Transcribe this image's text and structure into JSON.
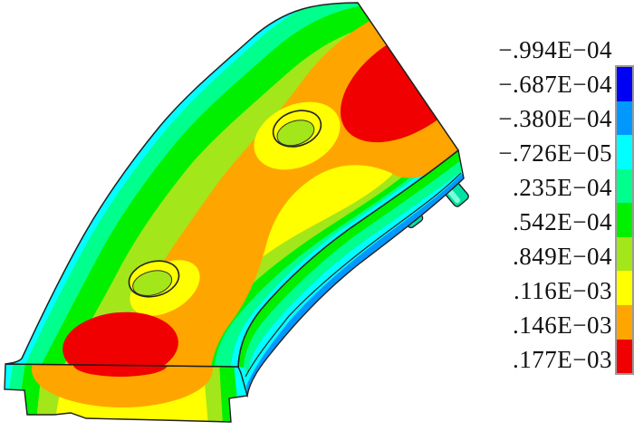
{
  "app": {
    "background": "#ffffff",
    "description": "FEA contour result plot of a curved tunnel lining segment with color legend"
  },
  "palette": {
    "colors": {
      "blue": "#0000f5",
      "skyblue": "#0098ff",
      "cyan": "#00ffff",
      "springgreen": "#00ff8c",
      "green": "#00f000",
      "yellowgreen": "#a3e619",
      "yellow": "#ffff00",
      "orange": "#ffa500",
      "red": "#f00000",
      "stud": "#00e2a4",
      "studlight": "#7dffd8",
      "outline": "#1f1f1f",
      "legend_border": "#9a9a9a",
      "text": "#111111"
    }
  },
  "legend": {
    "position": "right",
    "labels": [
      "−.994E−04",
      "−.687E−04",
      "−.380E−04",
      "−.726E−05",
      ".235E−04",
      ".542E−04",
      ".849E−04",
      ".116E−03",
      ".146E−03",
      ".177E−03"
    ],
    "band_order_top_to_bottom": [
      "blue",
      "skyblue",
      "cyan",
      "springgreen",
      "green",
      "yellowgreen",
      "yellow",
      "orange",
      "red"
    ]
  },
  "chart_data": {
    "type": "heatmap",
    "title": "",
    "legend_position": "right",
    "contour_levels": [
      -9.94e-05,
      -6.87e-05,
      -3.8e-05,
      -7.26e-06,
      2.35e-05,
      5.42e-05,
      8.49e-05,
      0.000116,
      0.000146,
      0.000177
    ],
    "level_labels": [
      "−.994E−04",
      "−.687E−04",
      "−.380E−04",
      "−.726E−05",
      ".235E−04",
      ".542E−04",
      ".849E−04",
      ".116E−03",
      ".146E−03",
      ".177E−03"
    ],
    "band_colors": [
      "#0000f5",
      "#0098ff",
      "#00ffff",
      "#00ff8c",
      "#00f000",
      "#a3e619",
      "#ffff00",
      "#ffa500",
      "#f00000"
    ],
    "min": -9.94e-05,
    "max": 0.000177,
    "notes": "Curved segment: red maxima (≈.177E−03) at the two joint faces, orange ridge along mid-surface, green-to-cyan toward both curved edges, blue/cyan minima on outer side face; two elliptical holes; four studs on the outer face"
  }
}
